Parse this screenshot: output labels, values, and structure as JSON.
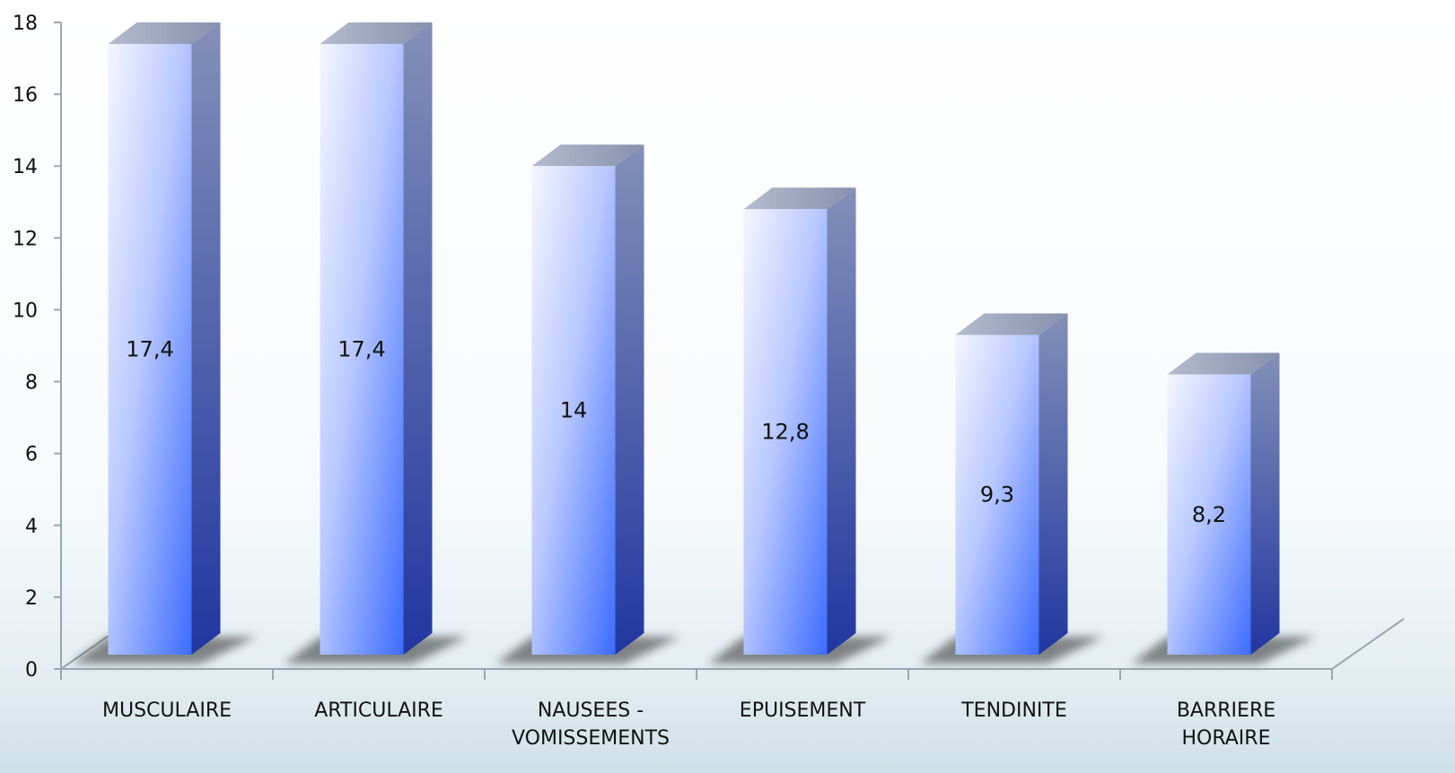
{
  "chart_data": {
    "type": "bar",
    "categories": [
      [
        "MUSCULAIRE"
      ],
      [
        "ARTICULAIRE"
      ],
      [
        "NAUSEES -",
        "VOMISSEMENTS"
      ],
      [
        "EPUISEMENT"
      ],
      [
        "TENDINITE"
      ],
      [
        "BARRIERE",
        "HORAIRE"
      ]
    ],
    "values": [
      17.4,
      17.4,
      14,
      12.8,
      9.3,
      8.2
    ],
    "value_labels": [
      "17,4",
      "17,4",
      "14",
      "12,8",
      "9,3",
      "8,2"
    ],
    "ylim": [
      0,
      18
    ],
    "yticks": [
      0,
      2,
      4,
      6,
      8,
      10,
      12,
      14,
      16,
      18
    ],
    "title": "",
    "xlabel": "",
    "ylabel": "",
    "style": "3d-column",
    "colors": {
      "front_top": "#f4f6ff",
      "front_bottom": "#3c6cff",
      "side_top": "#8290b8",
      "side_bottom": "#2136a0",
      "top_face": "#9aa3bd",
      "axis": "#9aa6b0"
    }
  }
}
